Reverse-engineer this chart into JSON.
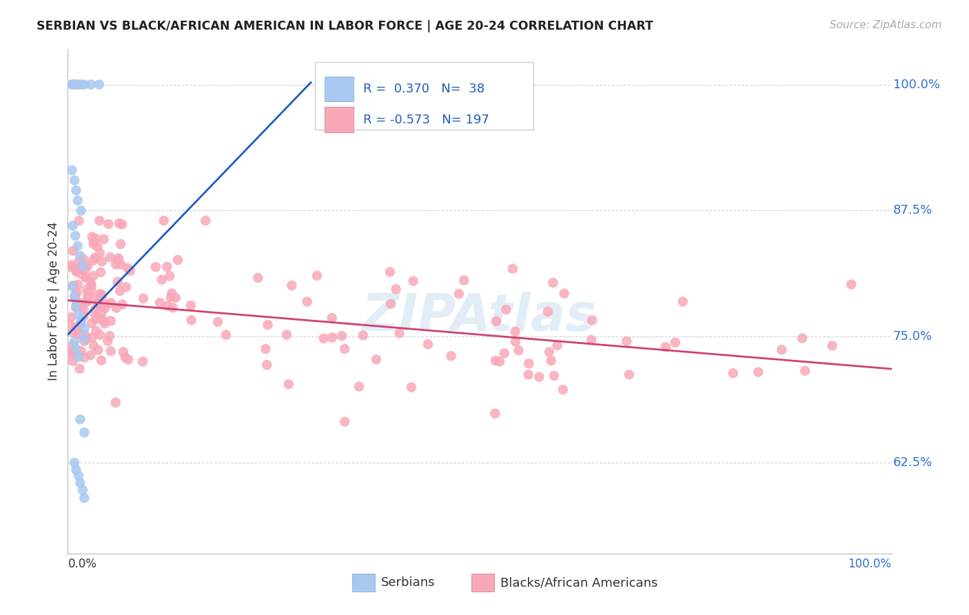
{
  "title": "SERBIAN VS BLACK/AFRICAN AMERICAN IN LABOR FORCE | AGE 20-24 CORRELATION CHART",
  "source": "Source: ZipAtlas.com",
  "ylabel": "In Labor Force | Age 20-24",
  "yticks": [
    0.625,
    0.75,
    0.875,
    1.0
  ],
  "ytick_labels": [
    "62.5%",
    "75.0%",
    "87.5%",
    "100.0%"
  ],
  "xmin": 0.0,
  "xmax": 1.0,
  "ymin": 0.535,
  "ymax": 1.035,
  "legend_serbian_r": "0.370",
  "legend_serbian_n": "38",
  "legend_black_r": "-0.573",
  "legend_black_n": "197",
  "serbian_color": "#a8c8f0",
  "black_color": "#f8a8b8",
  "serbian_line_color": "#1e5bbf",
  "black_line_color": "#d04070",
  "legend_r_color": "#1e5bbf",
  "background_color": "#ffffff",
  "watermark": "ZIPAtlas",
  "serbian_line": [
    [
      0.0,
      0.752
    ],
    [
      0.295,
      1.002
    ]
  ],
  "black_line": [
    [
      0.0,
      0.786
    ],
    [
      1.0,
      0.718
    ]
  ]
}
